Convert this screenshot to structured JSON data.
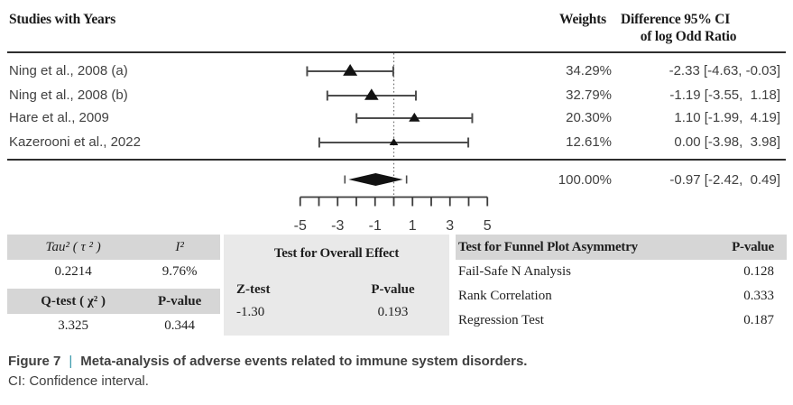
{
  "header": {
    "studies_label": "Studies with Years",
    "weights_label": "Weights",
    "difference_label_line1": "Difference 95% CI",
    "difference_label_line2": "of log Odd Ratio"
  },
  "chart_data": {
    "type": "forest",
    "effect_measure": "Difference of log Odd Ratio",
    "axis": {
      "xlim": [
        -5,
        5
      ],
      "ticks": [
        -5,
        -4,
        -3,
        -2,
        -1,
        0,
        1,
        2,
        3,
        4,
        5
      ],
      "labeled_ticks": [
        -5,
        -3,
        -1,
        1,
        3,
        5
      ],
      "tick_labels": [
        "-5",
        "-3",
        "-1",
        "1",
        "3",
        "5"
      ],
      "zero_line": 0
    },
    "studies": [
      {
        "label": "Ning et al., 2008 (a)",
        "weight": "34.29%",
        "estimate": -2.33,
        "ci_low": -4.63,
        "ci_high": -0.03,
        "difference_text": "-2.33 [-4.63, -0.03]"
      },
      {
        "label": "Ning et al., 2008 (b)",
        "weight": "32.79%",
        "estimate": -1.19,
        "ci_low": -3.55,
        "ci_high": 1.18,
        "difference_text": "-1.19 [-3.55,  1.18]"
      },
      {
        "label": "Hare et al., 2009",
        "weight": "20.30%",
        "estimate": 1.1,
        "ci_low": -1.99,
        "ci_high": 4.19,
        "difference_text": "1.10 [-1.99,  4.19]"
      },
      {
        "label": "Kazerooni et al., 2022",
        "weight": "12.61%",
        "estimate": 0.0,
        "ci_low": -3.98,
        "ci_high": 3.98,
        "difference_text": "0.00 [-3.98,  3.98]"
      }
    ],
    "summary": {
      "weight": "100.00%",
      "estimate": -0.97,
      "ci_low": -2.42,
      "ci_high": 0.49,
      "difference_text": "-0.97 [-2.42,  0.49]"
    }
  },
  "stats": {
    "heterogeneity": {
      "tau2_label": "Tau² ( τ ² )",
      "i2_label": "I²",
      "tau2_value": "0.2214",
      "i2_value": "9.76%",
      "qtest_label": "Q-test ( χ² )",
      "pvalue_label": "P-value",
      "qtest_value": "3.325",
      "pvalue_value": "0.344"
    },
    "overall": {
      "title": "Test for Overall Effect",
      "ztest_label": "Z-test",
      "pvalue_label": "P-value",
      "ztest_value": "-1.30",
      "pvalue_value": "0.193"
    },
    "funnel": {
      "title": "Test for Funnel Plot Asymmetry",
      "pvalue_label": "P-value",
      "rows": [
        {
          "label": "Fail-Safe N Analysis",
          "value": "0.128"
        },
        {
          "label": "Rank Correlation",
          "value": "0.333"
        },
        {
          "label": "Regression Test",
          "value": "0.187"
        }
      ]
    }
  },
  "caption": {
    "figure_label": "Figure 7",
    "separator": "|",
    "title": "Meta-analysis of adverse events related to immune system disorders.",
    "note": "CI: Confidence interval."
  },
  "colors": {
    "separator_teal": "#3596a8",
    "table_header_gray": "#d6d6d6",
    "middle_block_gray": "#e9e9e9",
    "marker_black": "#121212",
    "ci_line_gray": "#4d4d4d"
  }
}
